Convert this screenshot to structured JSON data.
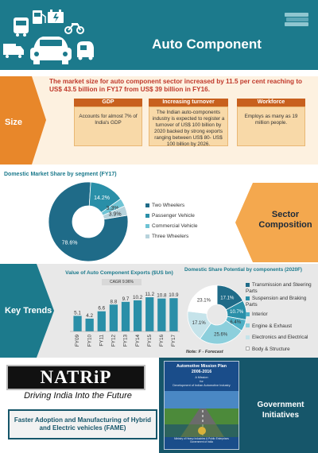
{
  "header": {
    "title": "Auto Component",
    "icons": [
      "bus-icon",
      "fuel-pump-icon",
      "battery-icon",
      "motorcycle-icon",
      "car-icon",
      "truck-icon",
      "auto-rickshaw-icon",
      "books-icon"
    ]
  },
  "size": {
    "label": "Size",
    "lead": "The market size for auto component sector increased by 11.5 per cent reaching to US$ 43.5 billion in FY17 from US$ 39 billion in FY16.",
    "boxes": [
      {
        "header": "GDP",
        "text": "Accounts for almost 7% of India's GDP"
      },
      {
        "header": "Increasing turnover",
        "text": "The Indian auto-components industry is expected to register a turnover of US$ 100 billion by 2020 backed by strong exports ranging between US$ 80- US$ 100 billion by 2026."
      },
      {
        "header": "Workforce",
        "text": "Employs as many as 19 million people."
      }
    ]
  },
  "composition": {
    "label": "Sector Composition",
    "label_lines": [
      "Sector",
      "Composition"
    ]
  },
  "trends": {
    "label": "Key Trends",
    "cagr_label": "CAGR 9.96%",
    "note": "Note: F - Forecast"
  },
  "government": {
    "label_lines": [
      "Government",
      "Initiatives"
    ],
    "natrip_logo": "NATRiP",
    "tagline": "Driving India Into the Future",
    "fame": "Faster Adoption and Manufacturing of Hybrid and Electric vehicles (FAME)",
    "plan": {
      "title_lines": [
        "Automotive Mission Plan",
        "2006-2016"
      ],
      "sub_lines": [
        "A Mission",
        "for",
        "Development of Indian Automotive Industry"
      ],
      "foot_lines": [
        "Ministry of Heavy Industries & Public Enterprises",
        "Government of India"
      ]
    }
  },
  "colors": {
    "teal": "#1c7a8c",
    "dark_teal": "#16566a",
    "orange": "#e8872a",
    "dark_orange": "#c8601e",
    "cream": "#fdf1e0",
    "lead_red": "#c0392b"
  },
  "chart_data": [
    {
      "type": "pie",
      "title": "Domestic Market Share by segment (FY17)",
      "categories": [
        "Two Wheelers",
        "Passenger Vehicle",
        "Commercial Vehicle",
        "Three Wheelers"
      ],
      "values": [
        78.6,
        14.2,
        3.3,
        3.9
      ],
      "value_labels": [
        "78.6%",
        "14.2%",
        "3.3%",
        "3.9%"
      ],
      "colors": [
        "#1f6b88",
        "#2a8fa8",
        "#6ec3d4",
        "#b7d3dc"
      ],
      "legend": "right"
    },
    {
      "type": "bar",
      "title": "Value of Auto Component Exports ($US bn)",
      "categories": [
        "FY09",
        "FY10",
        "FY11",
        "FY12",
        "FY13",
        "FY14",
        "FY15",
        "FY16",
        "FY17"
      ],
      "values": [
        5.1,
        4.2,
        6.6,
        8.8,
        9.7,
        10.2,
        11.2,
        10.8,
        10.9
      ],
      "ylim": [
        0,
        12
      ],
      "color": "#2a8fa8",
      "annotation": "CAGR 9.96%"
    },
    {
      "type": "pie",
      "title": "Domestic Share Potential by components (2020F)",
      "categories": [
        "Transmission and Steering Parts",
        "Suspension and Braking Parts",
        "Interior",
        "Engine & Exhaust",
        "Electronics and Electrical",
        "Body & Structure"
      ],
      "values": [
        17.1,
        10.7,
        6.4,
        25.6,
        17.1,
        23.1
      ],
      "value_labels": [
        "17.1%",
        "10.7%",
        "6.4%",
        "25.6%",
        "17.1%",
        "23.1%"
      ],
      "colors": [
        "#1f6b88",
        "#2a8fa8",
        "#4fb0c6",
        "#8ccfdc",
        "#c5e3ea",
        "#ffffff"
      ],
      "legend": "right"
    }
  ]
}
